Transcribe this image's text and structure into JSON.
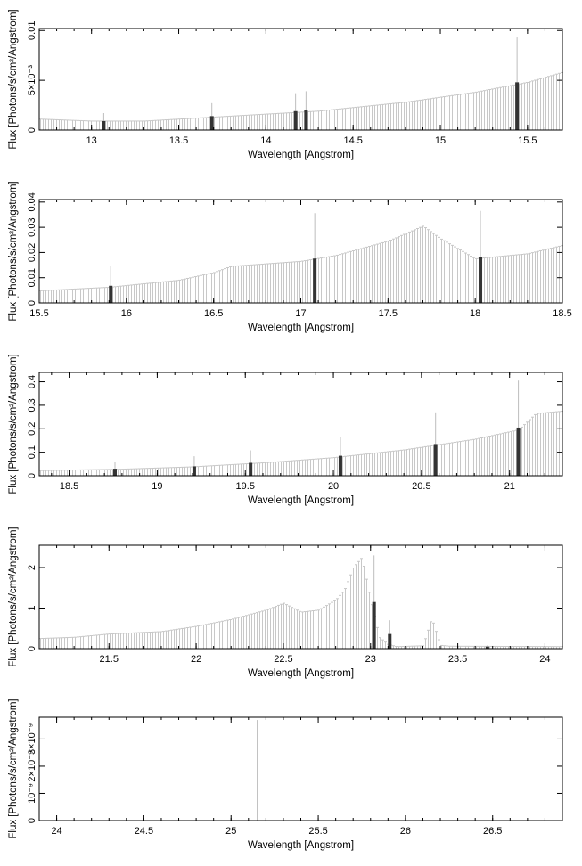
{
  "chart_data": [
    {
      "type": "bar",
      "xlabel": "Wavelength [Angstrom]",
      "ylabel": "Flux [Photons/s/cm²/Angstrom]",
      "xlim": [
        12.7,
        15.7
      ],
      "ylim": [
        0,
        0.0102
      ],
      "xticks": [
        {
          "v": 13,
          "label": "13"
        },
        {
          "v": 13.5,
          "label": "13.5"
        },
        {
          "v": 14,
          "label": "14"
        },
        {
          "v": 14.5,
          "label": "14.5"
        },
        {
          "v": 15,
          "label": "15"
        },
        {
          "v": 15.5,
          "label": "15.5"
        }
      ],
      "yticks": [
        {
          "v": 0,
          "label": "0"
        },
        {
          "v": 0.005,
          "label": "5×10⁻³"
        },
        {
          "v": 0.01,
          "label": "0.01"
        }
      ],
      "continuum": {
        "x": [
          12.7,
          13.0,
          13.3,
          13.8,
          14.3,
          14.8,
          15.2,
          15.5,
          15.7
        ],
        "y": [
          0.0011,
          0.0009,
          0.0009,
          0.0014,
          0.0019,
          0.0028,
          0.0038,
          0.0048,
          0.0058
        ]
      },
      "lines": [
        {
          "x": 13.07,
          "y": 0.0009,
          "err": 0.0017
        },
        {
          "x": 13.69,
          "y": 0.0014,
          "err": 0.0027
        },
        {
          "x": 14.17,
          "y": 0.0019,
          "err": 0.0037
        },
        {
          "x": 14.23,
          "y": 0.002,
          "err": 0.0039
        },
        {
          "x": 15.44,
          "y": 0.0048,
          "err": 0.0093
        }
      ]
    },
    {
      "type": "bar",
      "xlabel": "Wavelength [Angstrom]",
      "ylabel": "Flux [Photons/s/cm²/Angstrom]",
      "xlim": [
        15.5,
        18.5
      ],
      "ylim": [
        0,
        0.041
      ],
      "xticks": [
        {
          "v": 15.5,
          "label": "15.5"
        },
        {
          "v": 16,
          "label": "16"
        },
        {
          "v": 16.5,
          "label": "16.5"
        },
        {
          "v": 17,
          "label": "17"
        },
        {
          "v": 17.5,
          "label": "17.5"
        },
        {
          "v": 18,
          "label": "18"
        },
        {
          "v": 18.5,
          "label": "18.5"
        }
      ],
      "yticks": [
        {
          "v": 0,
          "label": "0"
        },
        {
          "v": 0.01,
          "label": "0.01"
        },
        {
          "v": 0.02,
          "label": "0.02"
        },
        {
          "v": 0.03,
          "label": "0.03"
        },
        {
          "v": 0.04,
          "label": "0.04"
        }
      ],
      "continuum": {
        "x": [
          15.5,
          15.9,
          16.3,
          16.5,
          16.6,
          16.8,
          17.0,
          17.2,
          17.5,
          17.7,
          17.8,
          18.0,
          18.3,
          18.5
        ],
        "y": [
          0.0048,
          0.0062,
          0.009,
          0.012,
          0.0145,
          0.0155,
          0.0165,
          0.0188,
          0.0245,
          0.0305,
          0.0255,
          0.0175,
          0.0195,
          0.0228
        ]
      },
      "lines": [
        {
          "x": 15.91,
          "y": 0.0068,
          "err": 0.0145
        },
        {
          "x": 17.08,
          "y": 0.0176,
          "err": 0.0356
        },
        {
          "x": 18.03,
          "y": 0.0182,
          "err": 0.0365
        }
      ]
    },
    {
      "type": "bar",
      "xlabel": "Wavelength [Angstrom]",
      "ylabel": "Flux [Photons/s/cm²/Angstrom]",
      "xlim": [
        18.33,
        21.3
      ],
      "ylim": [
        0,
        0.44
      ],
      "xticks": [
        {
          "v": 18.5,
          "label": "18.5"
        },
        {
          "v": 19,
          "label": "19"
        },
        {
          "v": 19.5,
          "label": "19.5"
        },
        {
          "v": 20,
          "label": "20"
        },
        {
          "v": 20.5,
          "label": "20.5"
        },
        {
          "v": 21,
          "label": "21"
        }
      ],
      "yticks": [
        {
          "v": 0,
          "label": "0"
        },
        {
          "v": 0.1,
          "label": "0.1"
        },
        {
          "v": 0.2,
          "label": "0.2"
        },
        {
          "v": 0.3,
          "label": "0.3"
        },
        {
          "v": 0.4,
          "label": "0.4"
        }
      ],
      "continuum": {
        "x": [
          18.33,
          18.8,
          19.2,
          19.6,
          20.0,
          20.4,
          20.8,
          21.05,
          21.15,
          21.3
        ],
        "y": [
          0.022,
          0.028,
          0.038,
          0.055,
          0.077,
          0.11,
          0.155,
          0.195,
          0.265,
          0.275
        ]
      },
      "lines": [
        {
          "x": 18.76,
          "y": 0.03,
          "err": 0.057
        },
        {
          "x": 19.21,
          "y": 0.04,
          "err": 0.083
        },
        {
          "x": 19.53,
          "y": 0.055,
          "err": 0.108
        },
        {
          "x": 20.04,
          "y": 0.085,
          "err": 0.165
        },
        {
          "x": 20.58,
          "y": 0.135,
          "err": 0.27
        },
        {
          "x": 21.05,
          "y": 0.205,
          "err": 0.405
        }
      ]
    },
    {
      "type": "bar",
      "xlabel": "Wavelength [Angstrom]",
      "ylabel": "Flux [Photons/s/cm²/Angstrom]",
      "xlim": [
        21.1,
        24.1
      ],
      "ylim": [
        0,
        2.55
      ],
      "xticks": [
        {
          "v": 21.5,
          "label": "21.5"
        },
        {
          "v": 22,
          "label": "22"
        },
        {
          "v": 22.5,
          "label": "22.5"
        },
        {
          "v": 23,
          "label": "23"
        },
        {
          "v": 23.5,
          "label": "23.5"
        },
        {
          "v": 24,
          "label": "24"
        }
      ],
      "yticks": [
        {
          "v": 0,
          "label": "0"
        },
        {
          "v": 1,
          "label": "1"
        },
        {
          "v": 2,
          "label": "2"
        }
      ],
      "continuum": {
        "x": [
          21.1,
          21.3,
          21.5,
          21.8,
          22.0,
          22.2,
          22.4,
          22.5,
          22.6,
          22.7,
          22.8,
          22.85,
          22.9,
          22.95,
          23.0,
          23.05,
          23.1,
          23.15,
          23.3,
          23.35,
          23.4,
          23.45,
          24.1
        ],
        "y": [
          0.25,
          0.28,
          0.36,
          0.42,
          0.55,
          0.72,
          0.95,
          1.12,
          0.9,
          0.95,
          1.2,
          1.45,
          2.0,
          2.25,
          1.2,
          0.28,
          0.1,
          0.05,
          0.07,
          0.75,
          0.08,
          0.06,
          0.05
        ]
      },
      "lines": [
        {
          "x": 23.02,
          "y": 1.15,
          "err": 2.3
        },
        {
          "x": 23.11,
          "y": 0.36,
          "err": 0.7
        },
        {
          "x": 23.67,
          "y": 0.05,
          "err": 0.08
        }
      ]
    },
    {
      "type": "bar",
      "xlabel": "Wavelength [Angstrom]",
      "ylabel": "Flux [Photons/s/cm²/Angstrom]",
      "xlim": [
        23.9,
        26.9
      ],
      "ylim": [
        0,
        3.8e-09
      ],
      "xticks": [
        {
          "v": 24,
          "label": "24"
        },
        {
          "v": 24.5,
          "label": "24.5"
        },
        {
          "v": 25,
          "label": "25"
        },
        {
          "v": 25.5,
          "label": "25.5"
        },
        {
          "v": 26,
          "label": "26"
        },
        {
          "v": 26.5,
          "label": "26.5"
        }
      ],
      "yticks": [
        {
          "v": 0,
          "label": "0"
        },
        {
          "v": 1e-09,
          "label": "10⁻⁹"
        },
        {
          "v": 2e-09,
          "label": "2×10⁻⁹"
        },
        {
          "v": 3e-09,
          "label": "3×10⁻⁹"
        }
      ],
      "continuum": {
        "x": [],
        "y": []
      },
      "spike": {
        "x": 25.15,
        "y": 3.7e-09
      },
      "lines": []
    }
  ]
}
